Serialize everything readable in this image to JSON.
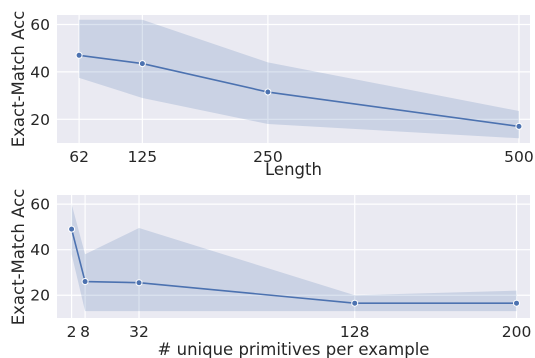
{
  "chart_data": [
    {
      "type": "line",
      "xlabel": "Length",
      "ylabel": "Exact-Match Acc",
      "x": [
        62,
        125,
        250,
        500
      ],
      "xticks": [
        62,
        125,
        250,
        500
      ],
      "yticks": [
        20,
        40,
        60
      ],
      "ylim": [
        10,
        64
      ],
      "grid": true,
      "series": [
        {
          "values": [
            47,
            43.5,
            31.5,
            17
          ],
          "ci_low": [
            37.5,
            29,
            18,
            12
          ],
          "ci_high": [
            62,
            62,
            44,
            23.5
          ],
          "color": "#4c72b0"
        }
      ]
    },
    {
      "type": "line",
      "xlabel": "# unique primitives per example",
      "ylabel": "Exact-Match Acc",
      "x": [
        2,
        8,
        32,
        128,
        200
      ],
      "xticks": [
        2,
        8,
        32,
        128,
        200
      ],
      "yticks": [
        20,
        40,
        60
      ],
      "ylim": [
        10,
        64
      ],
      "grid": true,
      "series": [
        {
          "values": [
            49,
            26,
            25.5,
            16.5,
            16.5
          ],
          "ci_low": [
            38,
            13,
            13,
            13,
            13
          ],
          "ci_high": [
            60,
            38,
            49.5,
            20,
            22
          ],
          "color": "#4c72b0"
        }
      ]
    }
  ]
}
